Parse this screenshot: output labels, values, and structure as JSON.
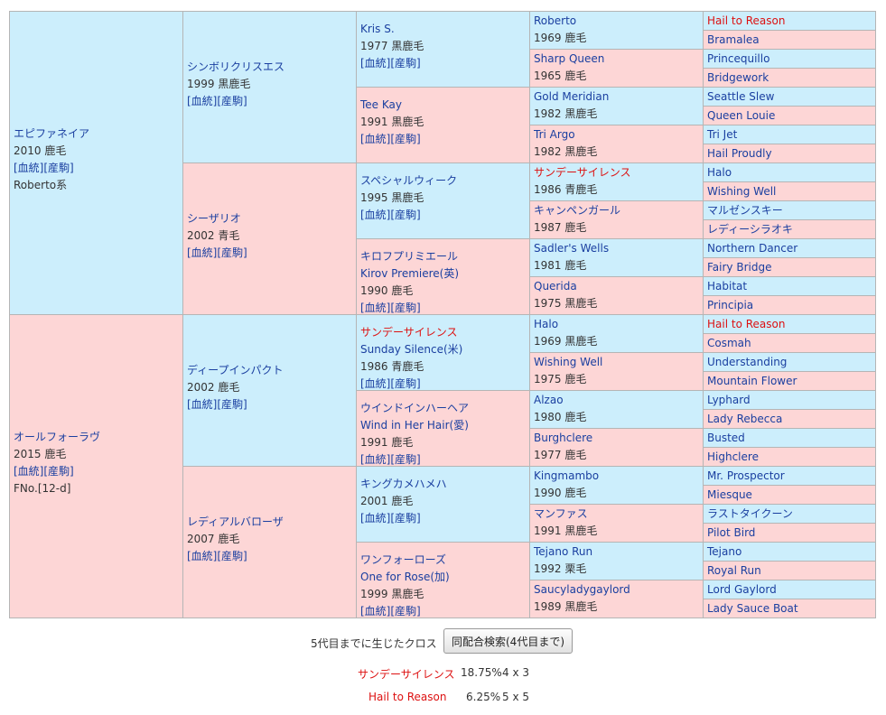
{
  "pedigree": {
    "sire": {
      "name": "エピファネイア",
      "info": "2010 鹿毛",
      "links": "[血統][産駒]",
      "extra": "Roberto系"
    },
    "dam": {
      "name": "オールフォーラヴ",
      "info": "2015 鹿毛",
      "links": "[血統][産駒]",
      "extra": "FNo.[12-d]"
    },
    "gen2": [
      {
        "name": "シンボリクリスエス",
        "info": "1999 黒鹿毛",
        "links": "[血統][産駒]"
      },
      {
        "name": "シーザリオ",
        "info": "2002 青毛",
        "links": "[血統][産駒]"
      },
      {
        "name": "ディープインパクト",
        "info": "2002 鹿毛",
        "links": "[血統][産駒]"
      },
      {
        "name": "レディアルバローザ",
        "info": "2007 鹿毛",
        "links": "[血統][産駒]"
      }
    ],
    "gen3": [
      {
        "name": "Kris S.",
        "ename": "",
        "info": "1977 黒鹿毛",
        "links": "[血統][産駒]",
        "red": false
      },
      {
        "name": "Tee Kay",
        "ename": "",
        "info": "1991 黒鹿毛",
        "links": "[血統][産駒]",
        "red": false
      },
      {
        "name": "スペシャルウィーク",
        "ename": "",
        "info": "1995 黒鹿毛",
        "links": "[血統][産駒]",
        "red": false
      },
      {
        "name": "キロフプリミエール",
        "ename": "Kirov Premiere(英)",
        "info": "1990 鹿毛",
        "links": "[血統][産駒]",
        "red": false
      },
      {
        "name": "サンデーサイレンス",
        "ename": "Sunday Silence(米)",
        "info": "1986 青鹿毛",
        "links": "[血統][産駒]",
        "red": true
      },
      {
        "name": "ウインドインハーヘア",
        "ename": "Wind in Her Hair(愛)",
        "info": "1991 鹿毛",
        "links": "[血統][産駒]",
        "red": false
      },
      {
        "name": "キングカメハメハ",
        "ename": "",
        "info": "2001 鹿毛",
        "links": "[血統][産駒]",
        "red": false
      },
      {
        "name": "ワンフォーローズ",
        "ename": "One for Rose(加)",
        "info": "1999 黒鹿毛",
        "links": "[血統][産駒]",
        "red": false
      }
    ],
    "gen4": [
      {
        "name": "Roberto",
        "info": "1969 鹿毛",
        "red": false
      },
      {
        "name": "Sharp Queen",
        "info": "1965 鹿毛",
        "red": false
      },
      {
        "name": "Gold Meridian",
        "info": "1982 黒鹿毛",
        "red": false
      },
      {
        "name": "Tri Argo",
        "info": "1982 黒鹿毛",
        "red": false
      },
      {
        "name": "サンデーサイレンス",
        "info": "1986 青鹿毛",
        "red": true
      },
      {
        "name": "キャンペンガール",
        "info": "1987 鹿毛",
        "red": false
      },
      {
        "name": "Sadler's Wells",
        "info": "1981 鹿毛",
        "red": false
      },
      {
        "name": "Querida",
        "info": "1975 黒鹿毛",
        "red": false
      },
      {
        "name": "Halo",
        "info": "1969 黒鹿毛",
        "red": false
      },
      {
        "name": "Wishing Well",
        "info": "1975 鹿毛",
        "red": false
      },
      {
        "name": "Alzao",
        "info": "1980 鹿毛",
        "red": false
      },
      {
        "name": "Burghclere",
        "info": "1977 鹿毛",
        "red": false
      },
      {
        "name": "Kingmambo",
        "info": "1990 鹿毛",
        "red": false
      },
      {
        "name": "マンファス",
        "info": "1991 黒鹿毛",
        "red": false
      },
      {
        "name": "Tejano Run",
        "info": "1992 栗毛",
        "red": false
      },
      {
        "name": "Saucyladygaylord",
        "info": "1989 黒鹿毛",
        "red": false
      }
    ],
    "gen5": [
      {
        "name": "Hail to Reason",
        "red": true
      },
      {
        "name": "Bramalea",
        "red": false
      },
      {
        "name": "Princequillo",
        "red": false
      },
      {
        "name": "Bridgework",
        "red": false
      },
      {
        "name": "Seattle Slew",
        "red": false
      },
      {
        "name": "Queen Louie",
        "red": false
      },
      {
        "name": "Tri Jet",
        "red": false
      },
      {
        "name": "Hail Proudly",
        "red": false
      },
      {
        "name": "Halo",
        "red": false
      },
      {
        "name": "Wishing Well",
        "red": false
      },
      {
        "name": "マルゼンスキー",
        "red": false
      },
      {
        "name": "レディーシラオキ",
        "red": false
      },
      {
        "name": "Northern Dancer",
        "red": false
      },
      {
        "name": "Fairy Bridge",
        "red": false
      },
      {
        "name": "Habitat",
        "red": false
      },
      {
        "name": "Principia",
        "red": false
      },
      {
        "name": "Hail to Reason",
        "red": true
      },
      {
        "name": "Cosmah",
        "red": false
      },
      {
        "name": "Understanding",
        "red": false
      },
      {
        "name": "Mountain Flower",
        "red": false
      },
      {
        "name": "Lyphard",
        "red": false
      },
      {
        "name": "Lady Rebecca",
        "red": false
      },
      {
        "name": "Busted",
        "red": false
      },
      {
        "name": "Highclere",
        "red": false
      },
      {
        "name": "Mr. Prospector",
        "red": false
      },
      {
        "name": "Miesque",
        "red": false
      },
      {
        "name": "ラストタイクーン",
        "red": false
      },
      {
        "name": "Pilot Bird",
        "red": false
      },
      {
        "name": "Tejano",
        "red": false
      },
      {
        "name": "Royal Run",
        "red": false
      },
      {
        "name": "Lord Gaylord",
        "red": false
      },
      {
        "name": "Lady Sauce Boat",
        "red": false
      }
    ]
  },
  "cross": {
    "label": "5代目までに生じたクロス",
    "search_button": "同配合検索(4代目まで)",
    "rows": [
      {
        "name": "サンデーサイレンス",
        "percent": "18.75%",
        "generations": "4 x 3"
      },
      {
        "name": "Hail to Reason",
        "percent": "6.25%",
        "generations": "5 x 5"
      }
    ]
  },
  "colors": {
    "male_bg": "#cceefc",
    "female_bg": "#fdd6d6",
    "link": "#1a3fa0",
    "cross_red": "#dd1111"
  }
}
